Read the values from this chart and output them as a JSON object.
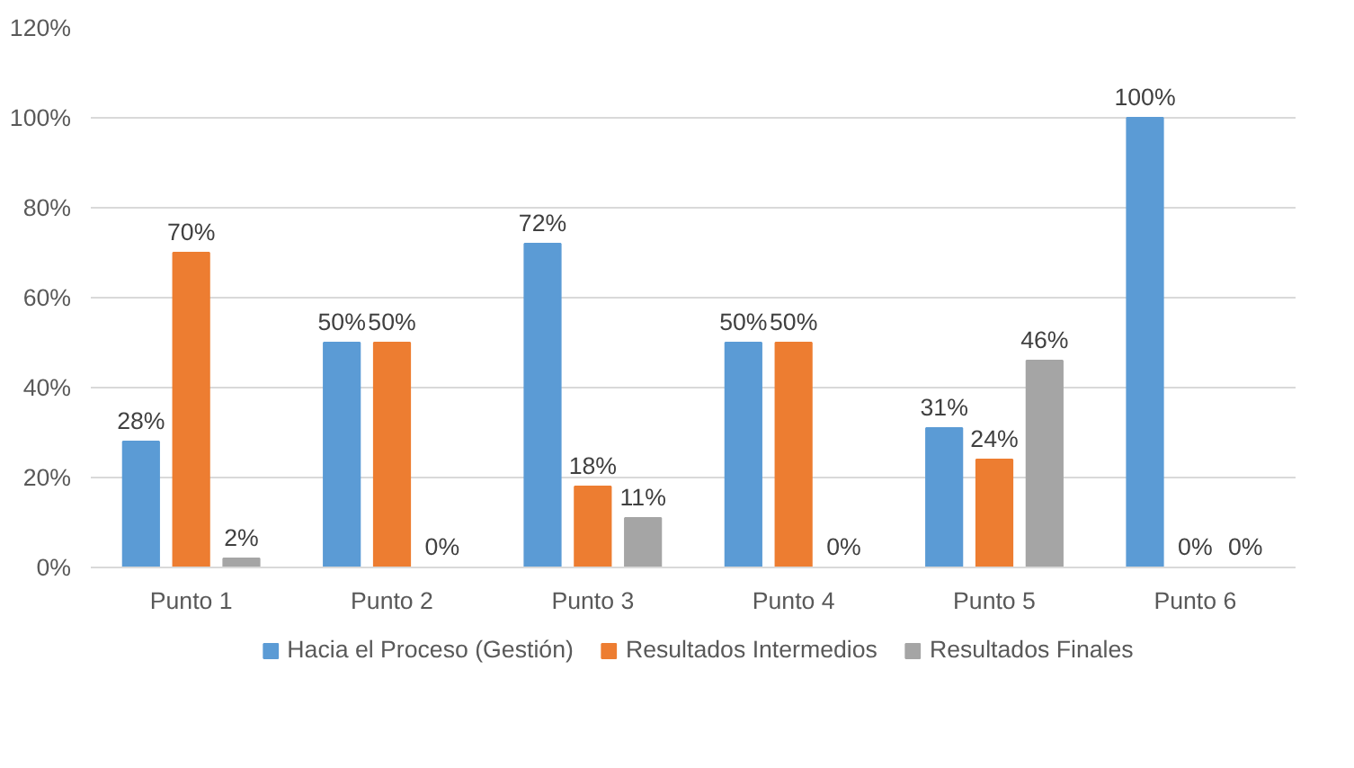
{
  "chart_data": {
    "type": "bar",
    "categories": [
      "Punto 1",
      "Punto 2",
      "Punto 3",
      "Punto 4",
      "Punto 5",
      "Punto 6"
    ],
    "series": [
      {
        "name": "Hacia el Proceso (Gestión)",
        "color": "#5b9bd5",
        "values": [
          28,
          50,
          72,
          50,
          31,
          100
        ],
        "value_labels": [
          "28%",
          "50%",
          "72%",
          "50%",
          "31%",
          "100%"
        ]
      },
      {
        "name": "Resultados Intermedios",
        "color": "#ed7d31",
        "values": [
          70,
          50,
          18,
          50,
          24,
          0
        ],
        "value_labels": [
          "70%",
          "50%",
          "18%",
          "50%",
          "24%",
          "0%"
        ]
      },
      {
        "name": "Resultados Finales",
        "color": "#a5a5a5",
        "values": [
          2,
          0,
          11,
          0,
          46,
          0
        ],
        "value_labels": [
          "2%",
          "0%",
          "11%",
          "0%",
          "46%",
          "0%"
        ]
      }
    ],
    "ylim": [
      0,
      120
    ],
    "yticks": [
      {
        "value": 0,
        "label": "0%"
      },
      {
        "value": 20,
        "label": "20%"
      },
      {
        "value": 40,
        "label": "40%"
      },
      {
        "value": 60,
        "label": "60%"
      },
      {
        "value": 80,
        "label": "80%"
      },
      {
        "value": 100,
        "label": "100%"
      },
      {
        "value": 120,
        "label": "120%"
      }
    ],
    "grid": "y",
    "legend": "bottom"
  }
}
